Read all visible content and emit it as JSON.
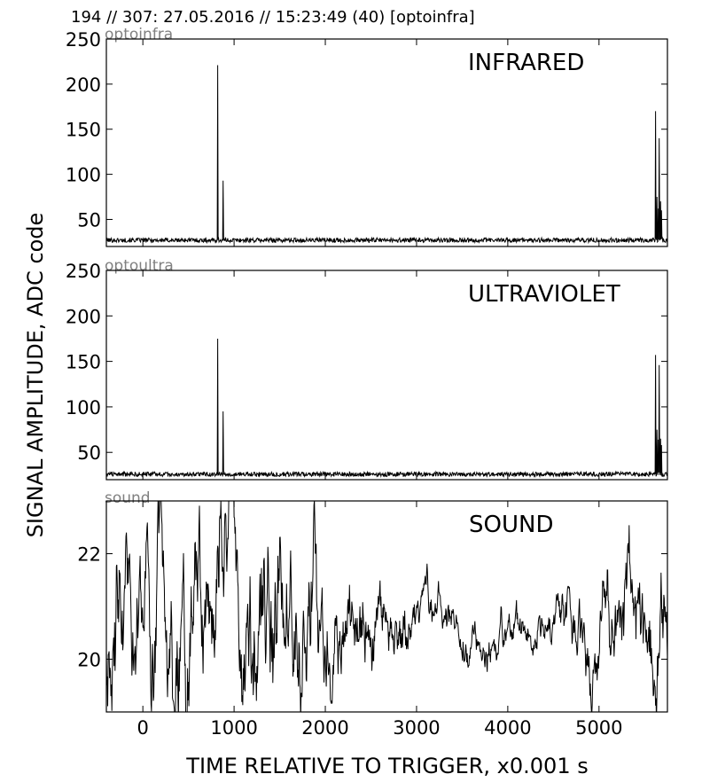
{
  "header": "194 // 307:   27.05.2016 // 15:23:49 (40)  [optoinfra]",
  "ylabel": "SIGNAL AMPLITUDE,  ADC code",
  "xlabel": "TIME RELATIVE TO TRIGGER,   x0.001 s",
  "chart_data": [
    {
      "type": "line",
      "source_tag": "optoinfra",
      "title": "INFRARED",
      "xlim": [
        -400,
        5750
      ],
      "ylim": [
        20,
        250
      ],
      "xticks": [
        0,
        1000,
        2000,
        3000,
        4000,
        5000
      ],
      "yticks": [
        50,
        100,
        150,
        200,
        250
      ],
      "baseline": 27,
      "noise": 2.5,
      "spikes": [
        [
          820,
          221
        ],
        [
          880,
          93
        ],
        [
          5620,
          170
        ],
        [
          5635,
          75
        ],
        [
          5650,
          62
        ],
        [
          5660,
          140
        ],
        [
          5675,
          70
        ],
        [
          5685,
          60
        ]
      ],
      "series": [
        {
          "values": []
        }
      ]
    },
    {
      "type": "line",
      "source_tag": "optoultra",
      "title": "ULTRAVIOLET",
      "xlim": [
        -400,
        5750
      ],
      "ylim": [
        20,
        250
      ],
      "xticks": [
        0,
        1000,
        2000,
        3000,
        4000,
        5000
      ],
      "yticks": [
        50,
        100,
        150,
        200,
        250
      ],
      "baseline": 26,
      "noise": 2.5,
      "spikes": [
        [
          820,
          175
        ],
        [
          880,
          95
        ],
        [
          5620,
          157
        ],
        [
          5635,
          75
        ],
        [
          5650,
          64
        ],
        [
          5660,
          146
        ],
        [
          5675,
          65
        ],
        [
          5685,
          58
        ]
      ],
      "series": [
        {
          "values": []
        }
      ]
    },
    {
      "type": "line",
      "source_tag": "sound",
      "title": "SOUND",
      "xlim": [
        -400,
        5750
      ],
      "ylim": [
        19,
        23
      ],
      "xticks": [
        0,
        1000,
        2000,
        3000,
        4000,
        5000
      ],
      "yticks": [
        20,
        22
      ],
      "envelope": [
        [
          -400,
          20.2,
          1.9
        ],
        [
          0,
          20.8,
          1.7
        ],
        [
          500,
          20.7,
          2.0
        ],
        [
          800,
          21.0,
          2.2
        ],
        [
          1300,
          20.8,
          2.0
        ],
        [
          1900,
          21.0,
          1.9
        ],
        [
          2100,
          20.7,
          1.2
        ],
        [
          2600,
          20.7,
          0.9
        ],
        [
          3000,
          20.9,
          0.6
        ],
        [
          3500,
          20.6,
          0.5
        ],
        [
          4000,
          20.5,
          0.5
        ],
        [
          4500,
          20.6,
          0.6
        ],
        [
          5000,
          20.3,
          1.0
        ],
        [
          5500,
          21.0,
          1.5
        ],
        [
          5750,
          20.5,
          1.5
        ]
      ],
      "series": [
        {
          "values": []
        }
      ]
    }
  ]
}
